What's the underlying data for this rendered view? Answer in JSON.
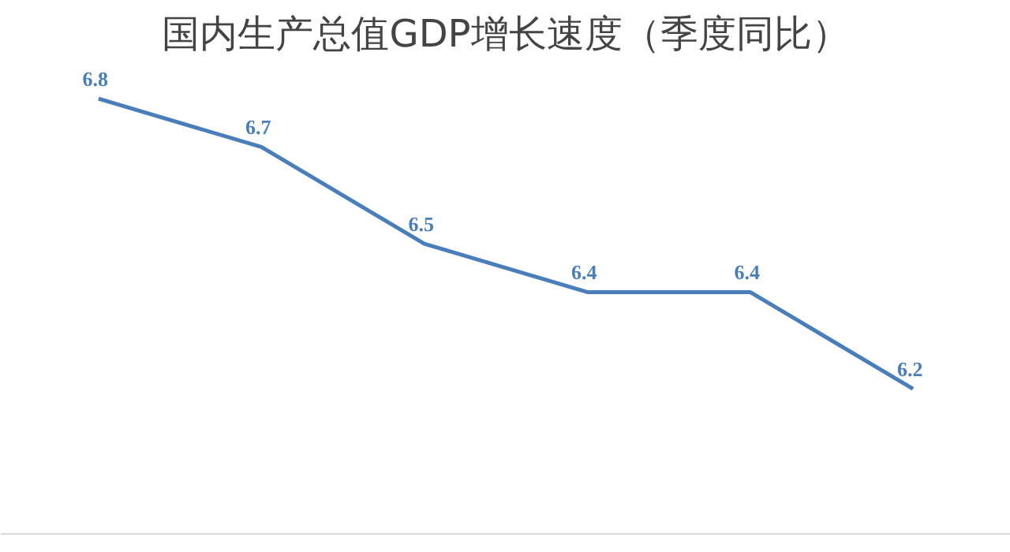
{
  "chart_data": {
    "type": "line",
    "title": "国内生产总值GDP增长速度（季度同比）",
    "categories": [
      null,
      null,
      null,
      null,
      null,
      null
    ],
    "series": [
      {
        "color": "#4a7ebb",
        "values": [
          6.8,
          6.7,
          6.5,
          6.4,
          6.4,
          6.2
        ]
      }
    ],
    "data_labels": true,
    "grid": false,
    "marker": "none",
    "line_style": "solid"
  }
}
